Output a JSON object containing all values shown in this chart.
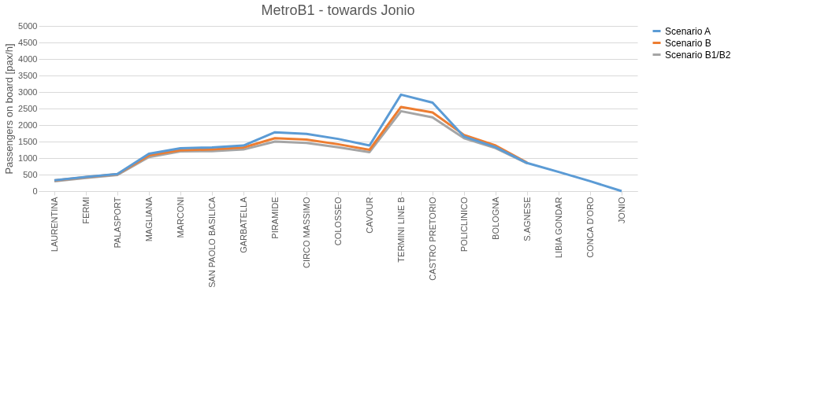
{
  "chart_data": {
    "type": "line",
    "title": "MetroB1 - towards Jonio",
    "ylabel": "Passengers on board [pax/h]",
    "categories": [
      "LAURENTINA",
      "FERMI",
      "PALASPORT",
      "MAGLIANA",
      "MARCONI",
      "SAN PAOLO BASILICA",
      "GARBATELLA",
      "PIRAMIDE",
      "CIRCO MASSIMO",
      "COLOSSEO",
      "CAVOUR",
      "TERMINI LINE B",
      "CASTRO PRETORIO",
      "POLICLINICO",
      "BOLOGNA",
      "S.AGNESE",
      "LIBIA GONDAR",
      "CONCA D'ORO",
      "JONIO"
    ],
    "series": [
      {
        "name": "Scenario A",
        "color": "#5b9bd5",
        "values": [
          330,
          430,
          520,
          1130,
          1300,
          1320,
          1380,
          1780,
          1730,
          1580,
          1380,
          2920,
          2680,
          1650,
          1330,
          850,
          580,
          300,
          0
        ]
      },
      {
        "name": "Scenario B",
        "color": "#ed7d31",
        "values": [
          320,
          420,
          510,
          1080,
          1240,
          1260,
          1320,
          1600,
          1560,
          1420,
          1250,
          2550,
          2380,
          1700,
          1380,
          860,
          null,
          null,
          null
        ]
      },
      {
        "name": "Scenario B1/B2",
        "color": "#a5a5a5",
        "values": [
          300,
          400,
          490,
          1030,
          1200,
          1210,
          1260,
          1500,
          1460,
          1330,
          1180,
          2420,
          2230,
          1600,
          1300,
          840,
          null,
          null,
          null
        ]
      }
    ],
    "ylim": [
      0,
      5000
    ],
    "yticks": [
      0,
      500,
      1000,
      1500,
      2000,
      2500,
      3000,
      3500,
      4000,
      4500,
      5000
    ],
    "grid": "y",
    "legend": "right",
    "marker": "none",
    "line_style": "solid"
  }
}
